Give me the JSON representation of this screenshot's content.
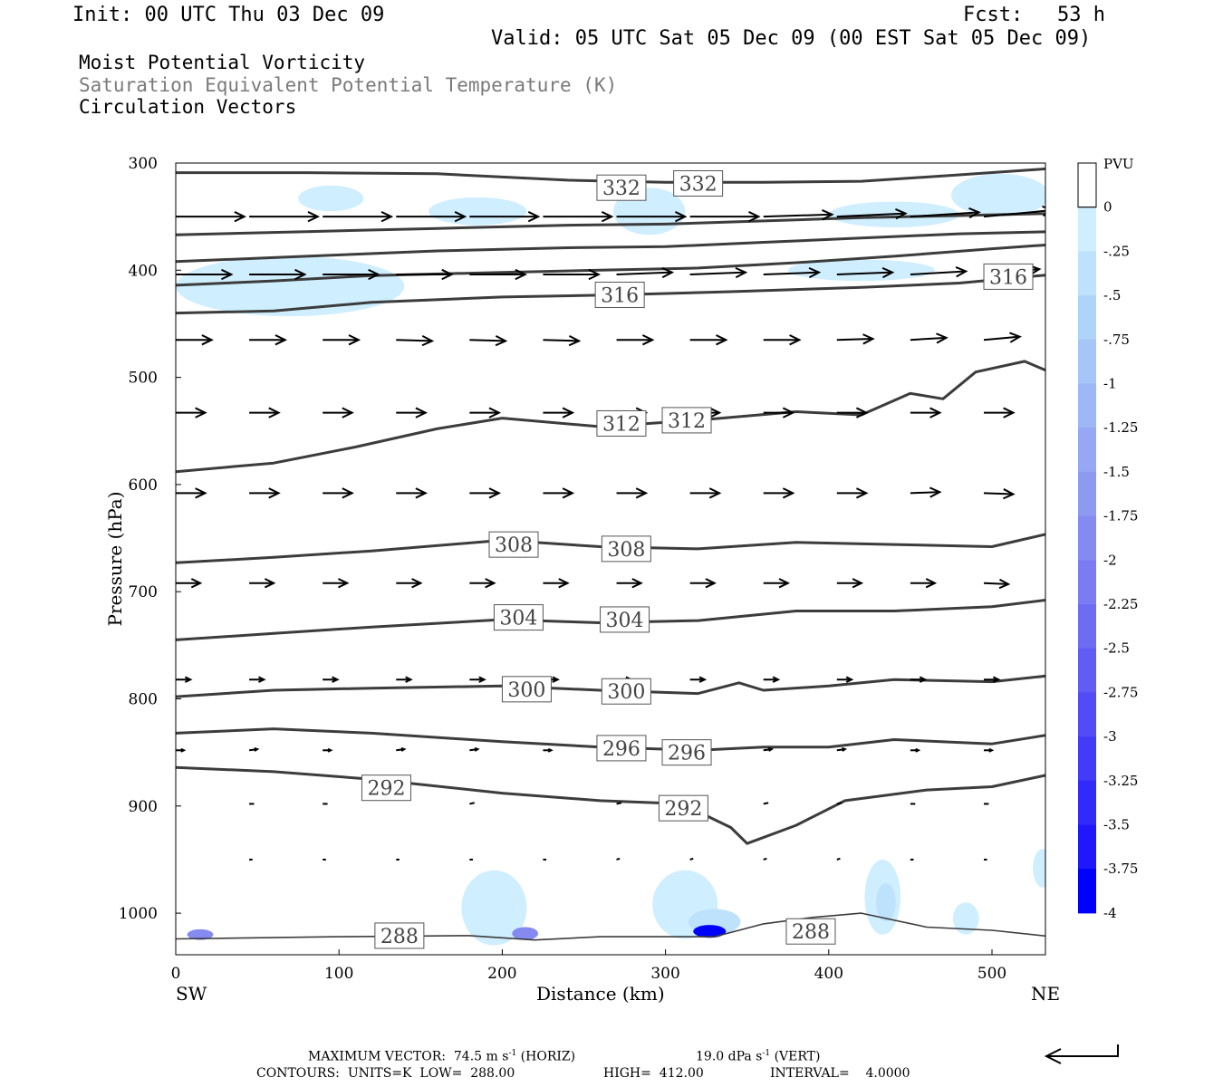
{
  "header": {
    "init": "Init: 00 UTC Thu 03 Dec 09",
    "fcst_label": "Fcst:",
    "fcst_value": "53 h",
    "valid": "Valid: 05 UTC Sat 05 Dec 09 (00 EST Sat 05 Dec 09)"
  },
  "fields": [
    "Moist Potential Vorticity",
    "Saturation Equivalent Potential Temperature (K)",
    "Circulation Vectors"
  ],
  "colors": {
    "contour": "#3c3c3c",
    "vector": "#000000",
    "fill_lightest": "#cfeeff",
    "fill_darkest": "#0000ff"
  },
  "footer": {
    "max_vector_label": "MAXIMUM VECTOR:",
    "max_vector_horiz_value": "74.5",
    "max_vector_horiz_units": "m s",
    "max_vector_horiz_tag": "(HORIZ)",
    "max_vector_vert_value": "19.0",
    "max_vector_vert_units": "dPa s",
    "max_vector_vert_tag": "(VERT)",
    "exponent": "-1",
    "contours_label": "CONTOURS:",
    "units": "UNITS=K",
    "low": "LOW=",
    "low_value": "288.00",
    "high": "HIGH=",
    "high_value": "412.00",
    "interval": "INTERVAL=",
    "interval_value": "4.0000"
  },
  "chart_data": {
    "type": "cross-section",
    "xlabel": "Distance (km)",
    "ylabel": "Pressure (hPa)",
    "x_left_label": "SW",
    "x_right_label": "NE",
    "xlim": [
      0,
      537
    ],
    "ylim": [
      1040,
      300
    ],
    "x_ticks": [
      0,
      100,
      200,
      300,
      400,
      500
    ],
    "y_ticks": [
      300,
      400,
      500,
      600,
      700,
      800,
      900,
      1000
    ],
    "colorbar": {
      "units": "PVU",
      "labels": [
        "0",
        "-.25",
        "-.5",
        "-.75",
        "-1",
        "-1.25",
        "-1.5",
        "-1.75",
        "-2",
        "-2.25",
        "-2.5",
        "-2.75",
        "-3",
        "-3.25",
        "-3.5",
        "-3.75",
        "-4"
      ],
      "colors": [
        "#ffffff",
        "#cfeeff",
        "#bfe2fc",
        "#afd4fa",
        "#a6c6f8",
        "#9eb7f6",
        "#96a8f4",
        "#8d9af2",
        "#858af1",
        "#7b7cf1",
        "#6e6cf2",
        "#615cf4",
        "#524bf6",
        "#423bf8",
        "#312afa",
        "#1f18fc",
        "#0000ff"
      ]
    },
    "contours": [
      {
        "level": 332,
        "points": [
          [
            0,
            309
          ],
          [
            80,
            309
          ],
          [
            160,
            310
          ],
          [
            240,
            316
          ],
          [
            300,
            318
          ],
          [
            360,
            318
          ],
          [
            420,
            317
          ],
          [
            480,
            311
          ],
          [
            537,
            305
          ]
        ]
      },
      {
        "level": 0,
        "points": [
          [
            0,
            367
          ],
          [
            80,
            364
          ],
          [
            160,
            361
          ],
          [
            240,
            358
          ],
          [
            300,
            357
          ],
          [
            360,
            354
          ],
          [
            420,
            351
          ],
          [
            480,
            349
          ],
          [
            537,
            347
          ]
        ]
      },
      {
        "level": 0,
        "points": [
          [
            0,
            392
          ],
          [
            80,
            387
          ],
          [
            160,
            382
          ],
          [
            240,
            379
          ],
          [
            300,
            378
          ],
          [
            360,
            374
          ],
          [
            420,
            370
          ],
          [
            480,
            366
          ],
          [
            537,
            364
          ]
        ]
      },
      {
        "level": 0,
        "points": [
          [
            0,
            414
          ],
          [
            60,
            410
          ],
          [
            120,
            405
          ],
          [
            200,
            402
          ],
          [
            260,
            400
          ],
          [
            320,
            398
          ],
          [
            380,
            393
          ],
          [
            440,
            387
          ],
          [
            500,
            380
          ],
          [
            537,
            376
          ]
        ]
      },
      {
        "level": 316,
        "points": [
          [
            0,
            440
          ],
          [
            60,
            438
          ],
          [
            120,
            430
          ],
          [
            200,
            425
          ],
          [
            270,
            423
          ],
          [
            340,
            420
          ],
          [
            420,
            416
          ],
          [
            480,
            412
          ],
          [
            537,
            404
          ]
        ]
      },
      {
        "level": 312,
        "points": [
          [
            0,
            588
          ],
          [
            60,
            580
          ],
          [
            110,
            565
          ],
          [
            160,
            548
          ],
          [
            200,
            538
          ],
          [
            260,
            546
          ],
          [
            320,
            540
          ],
          [
            380,
            532
          ],
          [
            420,
            535
          ],
          [
            450,
            515
          ],
          [
            470,
            520
          ],
          [
            490,
            495
          ],
          [
            520,
            485
          ],
          [
            537,
            496
          ]
        ]
      },
      {
        "level": 308,
        "points": [
          [
            0,
            673
          ],
          [
            60,
            668
          ],
          [
            120,
            662
          ],
          [
            200,
            652
          ],
          [
            260,
            658
          ],
          [
            320,
            660
          ],
          [
            380,
            654
          ],
          [
            440,
            656
          ],
          [
            500,
            658
          ],
          [
            537,
            645
          ]
        ]
      },
      {
        "level": 304,
        "points": [
          [
            0,
            745
          ],
          [
            60,
            739
          ],
          [
            120,
            733
          ],
          [
            200,
            726
          ],
          [
            260,
            729
          ],
          [
            320,
            727
          ],
          [
            380,
            718
          ],
          [
            440,
            718
          ],
          [
            500,
            714
          ],
          [
            537,
            707
          ]
        ]
      },
      {
        "level": 300,
        "points": [
          [
            0,
            798
          ],
          [
            60,
            792
          ],
          [
            120,
            790
          ],
          [
            200,
            788
          ],
          [
            260,
            792
          ],
          [
            320,
            795
          ],
          [
            345,
            785
          ],
          [
            360,
            792
          ],
          [
            400,
            788
          ],
          [
            440,
            782
          ],
          [
            500,
            784
          ],
          [
            537,
            778
          ]
        ]
      },
      {
        "level": 296,
        "points": [
          [
            0,
            832
          ],
          [
            60,
            828
          ],
          [
            120,
            832
          ],
          [
            200,
            840
          ],
          [
            260,
            845
          ],
          [
            320,
            848
          ],
          [
            360,
            845
          ],
          [
            400,
            845
          ],
          [
            440,
            838
          ],
          [
            500,
            842
          ],
          [
            537,
            833
          ]
        ]
      },
      {
        "level": 292,
        "points": [
          [
            0,
            864
          ],
          [
            60,
            868
          ],
          [
            120,
            875
          ],
          [
            200,
            888
          ],
          [
            260,
            895
          ],
          [
            310,
            898
          ],
          [
            340,
            920
          ],
          [
            350,
            935
          ],
          [
            380,
            918
          ],
          [
            410,
            895
          ],
          [
            460,
            885
          ],
          [
            500,
            882
          ],
          [
            537,
            870
          ]
        ]
      },
      {
        "level": 288,
        "points": [
          [
            0,
            1024
          ],
          [
            100,
            1022
          ],
          [
            180,
            1021
          ],
          [
            220,
            1025
          ],
          [
            260,
            1022
          ],
          [
            330,
            1022
          ],
          [
            360,
            1010
          ],
          [
            390,
            1004
          ],
          [
            420,
            1000
          ],
          [
            460,
            1013
          ],
          [
            500,
            1016
          ],
          [
            537,
            1022
          ]
        ]
      }
    ],
    "contour_labels": [
      {
        "text": "332",
        "x": 273,
        "p": 323
      },
      {
        "text": "332",
        "x": 320,
        "p": 319
      },
      {
        "text": "316",
        "x": 272,
        "p": 423
      },
      {
        "text": "316",
        "x": 510,
        "p": 406
      },
      {
        "text": "312",
        "x": 273,
        "p": 543
      },
      {
        "text": "312",
        "x": 313,
        "p": 540
      },
      {
        "text": "308",
        "x": 207,
        "p": 656
      },
      {
        "text": "308",
        "x": 276,
        "p": 660
      },
      {
        "text": "304",
        "x": 210,
        "p": 724
      },
      {
        "text": "304",
        "x": 275,
        "p": 726
      },
      {
        "text": "300",
        "x": 215,
        "p": 791
      },
      {
        "text": "300",
        "x": 276,
        "p": 793
      },
      {
        "text": "296",
        "x": 273,
        "p": 846
      },
      {
        "text": "296",
        "x": 313,
        "p": 850
      },
      {
        "text": "292",
        "x": 129,
        "p": 883
      },
      {
        "text": "292",
        "x": 311,
        "p": 902
      },
      {
        "text": "288",
        "x": 137,
        "p": 1021
      },
      {
        "text": "288",
        "x": 389,
        "p": 1017
      }
    ],
    "pv_regions": [
      {
        "level": -0.25,
        "x": 95,
        "p": 333,
        "rx": 20,
        "rp": 12
      },
      {
        "level": -0.25,
        "x": 185,
        "p": 345,
        "rx": 30,
        "rp": 13
      },
      {
        "level": -0.25,
        "x": 290,
        "p": 345,
        "rx": 22,
        "rp": 22
      },
      {
        "level": -0.25,
        "x": 440,
        "p": 348,
        "rx": 40,
        "rp": 12
      },
      {
        "level": -0.25,
        "x": 505,
        "p": 330,
        "rx": 30,
        "rp": 20
      },
      {
        "level": -0.25,
        "x": 70,
        "p": 415,
        "rx": 70,
        "rp": 28
      },
      {
        "level": -0.25,
        "x": 420,
        "p": 400,
        "rx": 45,
        "rp": 10
      },
      {
        "level": -0.25,
        "x": 195,
        "p": 995,
        "rx": 20,
        "rp": 35
      },
      {
        "level": -0.25,
        "x": 312,
        "p": 992,
        "rx": 20,
        "rp": 32
      },
      {
        "level": -0.25,
        "x": 433,
        "p": 985,
        "rx": 11,
        "rp": 35
      },
      {
        "level": -0.25,
        "x": 484,
        "p": 1005,
        "rx": 8,
        "rp": 15
      },
      {
        "level": -0.25,
        "x": 531,
        "p": 958,
        "rx": 6,
        "rp": 18
      },
      {
        "level": -0.5,
        "x": 330,
        "p": 1008,
        "rx": 16,
        "rp": 12
      },
      {
        "level": -0.5,
        "x": 435,
        "p": 990,
        "rx": 6,
        "rp": 18
      },
      {
        "level": -2.0,
        "x": 15,
        "p": 1020,
        "rx": 8,
        "rp": 5
      },
      {
        "level": -2.0,
        "x": 214,
        "p": 1019,
        "rx": 8,
        "rp": 6
      },
      {
        "level": -4.0,
        "x": 327,
        "p": 1017,
        "rx": 10,
        "rp": 6
      }
    ],
    "vector_rows": [
      {
        "p": 350,
        "x": [
          0,
          45,
          90,
          135,
          180,
          225,
          270,
          315,
          360,
          405,
          450,
          495
        ],
        "dx": 42,
        "dp": [
          0,
          0,
          0,
          0,
          0,
          0,
          0,
          0,
          -2,
          -3,
          -4,
          -6
        ]
      },
      {
        "p": 404,
        "x": [
          0,
          45,
          90,
          135,
          180,
          225,
          270,
          315,
          360,
          405,
          450,
          495
        ],
        "dx": 34,
        "dp": [
          0,
          0,
          0,
          0,
          0,
          0,
          -2,
          -2,
          -2,
          -2,
          -3,
          -5
        ]
      },
      {
        "p": 465,
        "x": [
          0,
          45,
          90,
          135,
          180,
          225,
          270,
          315,
          360,
          405,
          450,
          495
        ],
        "dx": 22,
        "dp": [
          0,
          0,
          0,
          1,
          1,
          1,
          0,
          0,
          0,
          -1,
          -2,
          -3
        ]
      },
      {
        "p": 533,
        "x": [
          0,
          45,
          90,
          135,
          180,
          225,
          270,
          315,
          360,
          405,
          450,
          495
        ],
        "dx": 18,
        "dp": [
          0,
          0,
          0,
          0,
          0,
          0,
          0,
          0,
          0,
          0,
          0,
          0
        ]
      },
      {
        "p": 608,
        "x": [
          0,
          45,
          90,
          135,
          180,
          225,
          270,
          315,
          360,
          405,
          450,
          495
        ],
        "dx": 18,
        "dp": [
          0,
          0,
          0,
          0,
          0,
          0,
          0,
          0,
          0,
          0,
          -1,
          1
        ]
      },
      {
        "p": 692,
        "x": [
          0,
          45,
          90,
          135,
          180,
          225,
          270,
          315,
          360,
          405,
          450,
          495
        ],
        "dx": 15,
        "dp": [
          0,
          0,
          0,
          0,
          0,
          0,
          0,
          0,
          0,
          0,
          0,
          1
        ]
      },
      {
        "p": 782,
        "x": [
          0,
          45,
          90,
          135,
          180,
          225,
          270,
          315,
          360,
          405,
          450,
          495
        ],
        "dx": 9,
        "dp": [
          0,
          0,
          0,
          0,
          0,
          0,
          0,
          0,
          0,
          0,
          0,
          0
        ]
      },
      {
        "p": 848,
        "x": [
          0,
          45,
          90,
          135,
          180,
          225,
          270,
          315,
          360,
          405,
          450,
          495
        ],
        "dx": 5,
        "dp": [
          0,
          -1,
          0,
          -1,
          -1,
          0,
          0,
          0,
          -1,
          -1,
          0,
          0
        ]
      },
      {
        "p": 898,
        "x": [
          45,
          90,
          180,
          270,
          360,
          405,
          450,
          495
        ],
        "dx": 3,
        "dp": [
          0,
          0,
          -1,
          -1,
          -1,
          -1,
          0,
          0
        ]
      },
      {
        "p": 950,
        "x": [
          45,
          90,
          135,
          180,
          225,
          270,
          315,
          360,
          405,
          450,
          495
        ],
        "dx": 2,
        "dp": [
          0,
          0,
          0,
          0,
          0,
          -1,
          -1,
          -1,
          -1,
          0,
          0
        ]
      }
    ]
  }
}
